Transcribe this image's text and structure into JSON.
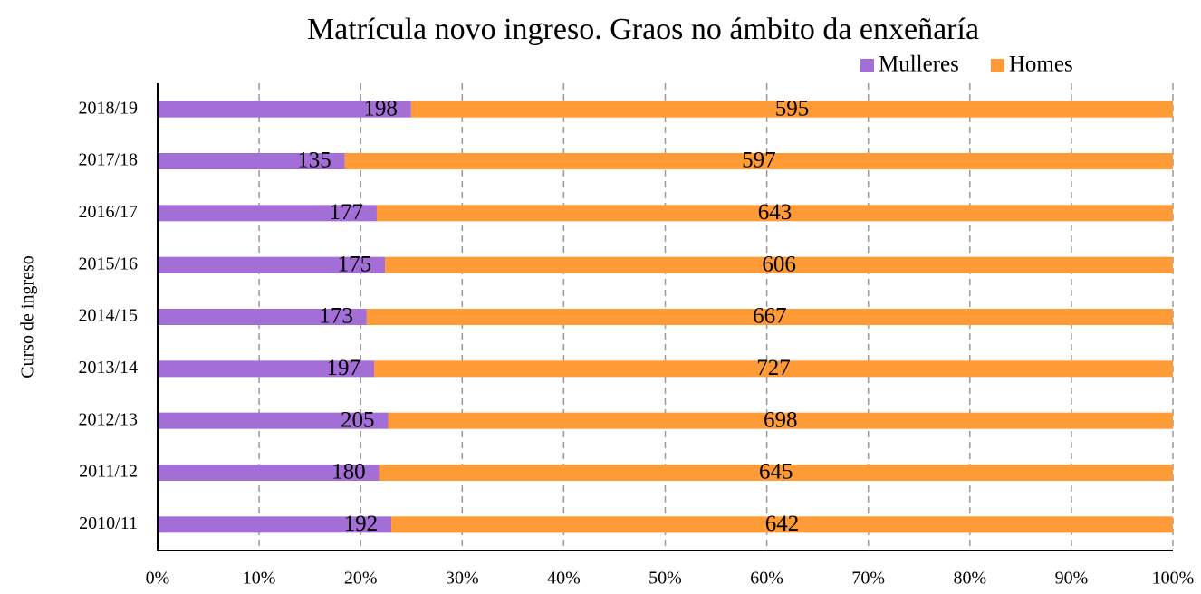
{
  "chart_data": {
    "type": "stacked_barh_percent",
    "title": "Matrícula novo ingreso. Graos no ámbito da enxeñaría",
    "ylabel": "Curso de ingreso",
    "categories": [
      "2018/19",
      "2017/18",
      "2016/17",
      "2015/16",
      "2014/15",
      "2013/14",
      "2012/13",
      "2011/12",
      "2010/11"
    ],
    "series": [
      {
        "name": "Mulleres",
        "color": "#a36fd6",
        "values": [
          198,
          135,
          177,
          175,
          173,
          197,
          205,
          180,
          192
        ]
      },
      {
        "name": "Homes",
        "color": "#ff9b37",
        "values": [
          595,
          597,
          643,
          606,
          667,
          727,
          698,
          645,
          642
        ]
      }
    ],
    "xlim": [
      0,
      100
    ],
    "xticks": [
      {
        "value": 0,
        "label": "0%"
      },
      {
        "value": 10,
        "label": "10%"
      },
      {
        "value": 20,
        "label": "20%"
      },
      {
        "value": 30,
        "label": "30%"
      },
      {
        "value": 40,
        "label": "40%"
      },
      {
        "value": 50,
        "label": "50%"
      },
      {
        "value": 60,
        "label": "60%"
      },
      {
        "value": 70,
        "label": "70%"
      },
      {
        "value": 80,
        "label": "80%"
      },
      {
        "value": 90,
        "label": "90%"
      },
      {
        "value": 100,
        "label": "100%"
      }
    ],
    "grid": true,
    "legend": "top-right"
  }
}
